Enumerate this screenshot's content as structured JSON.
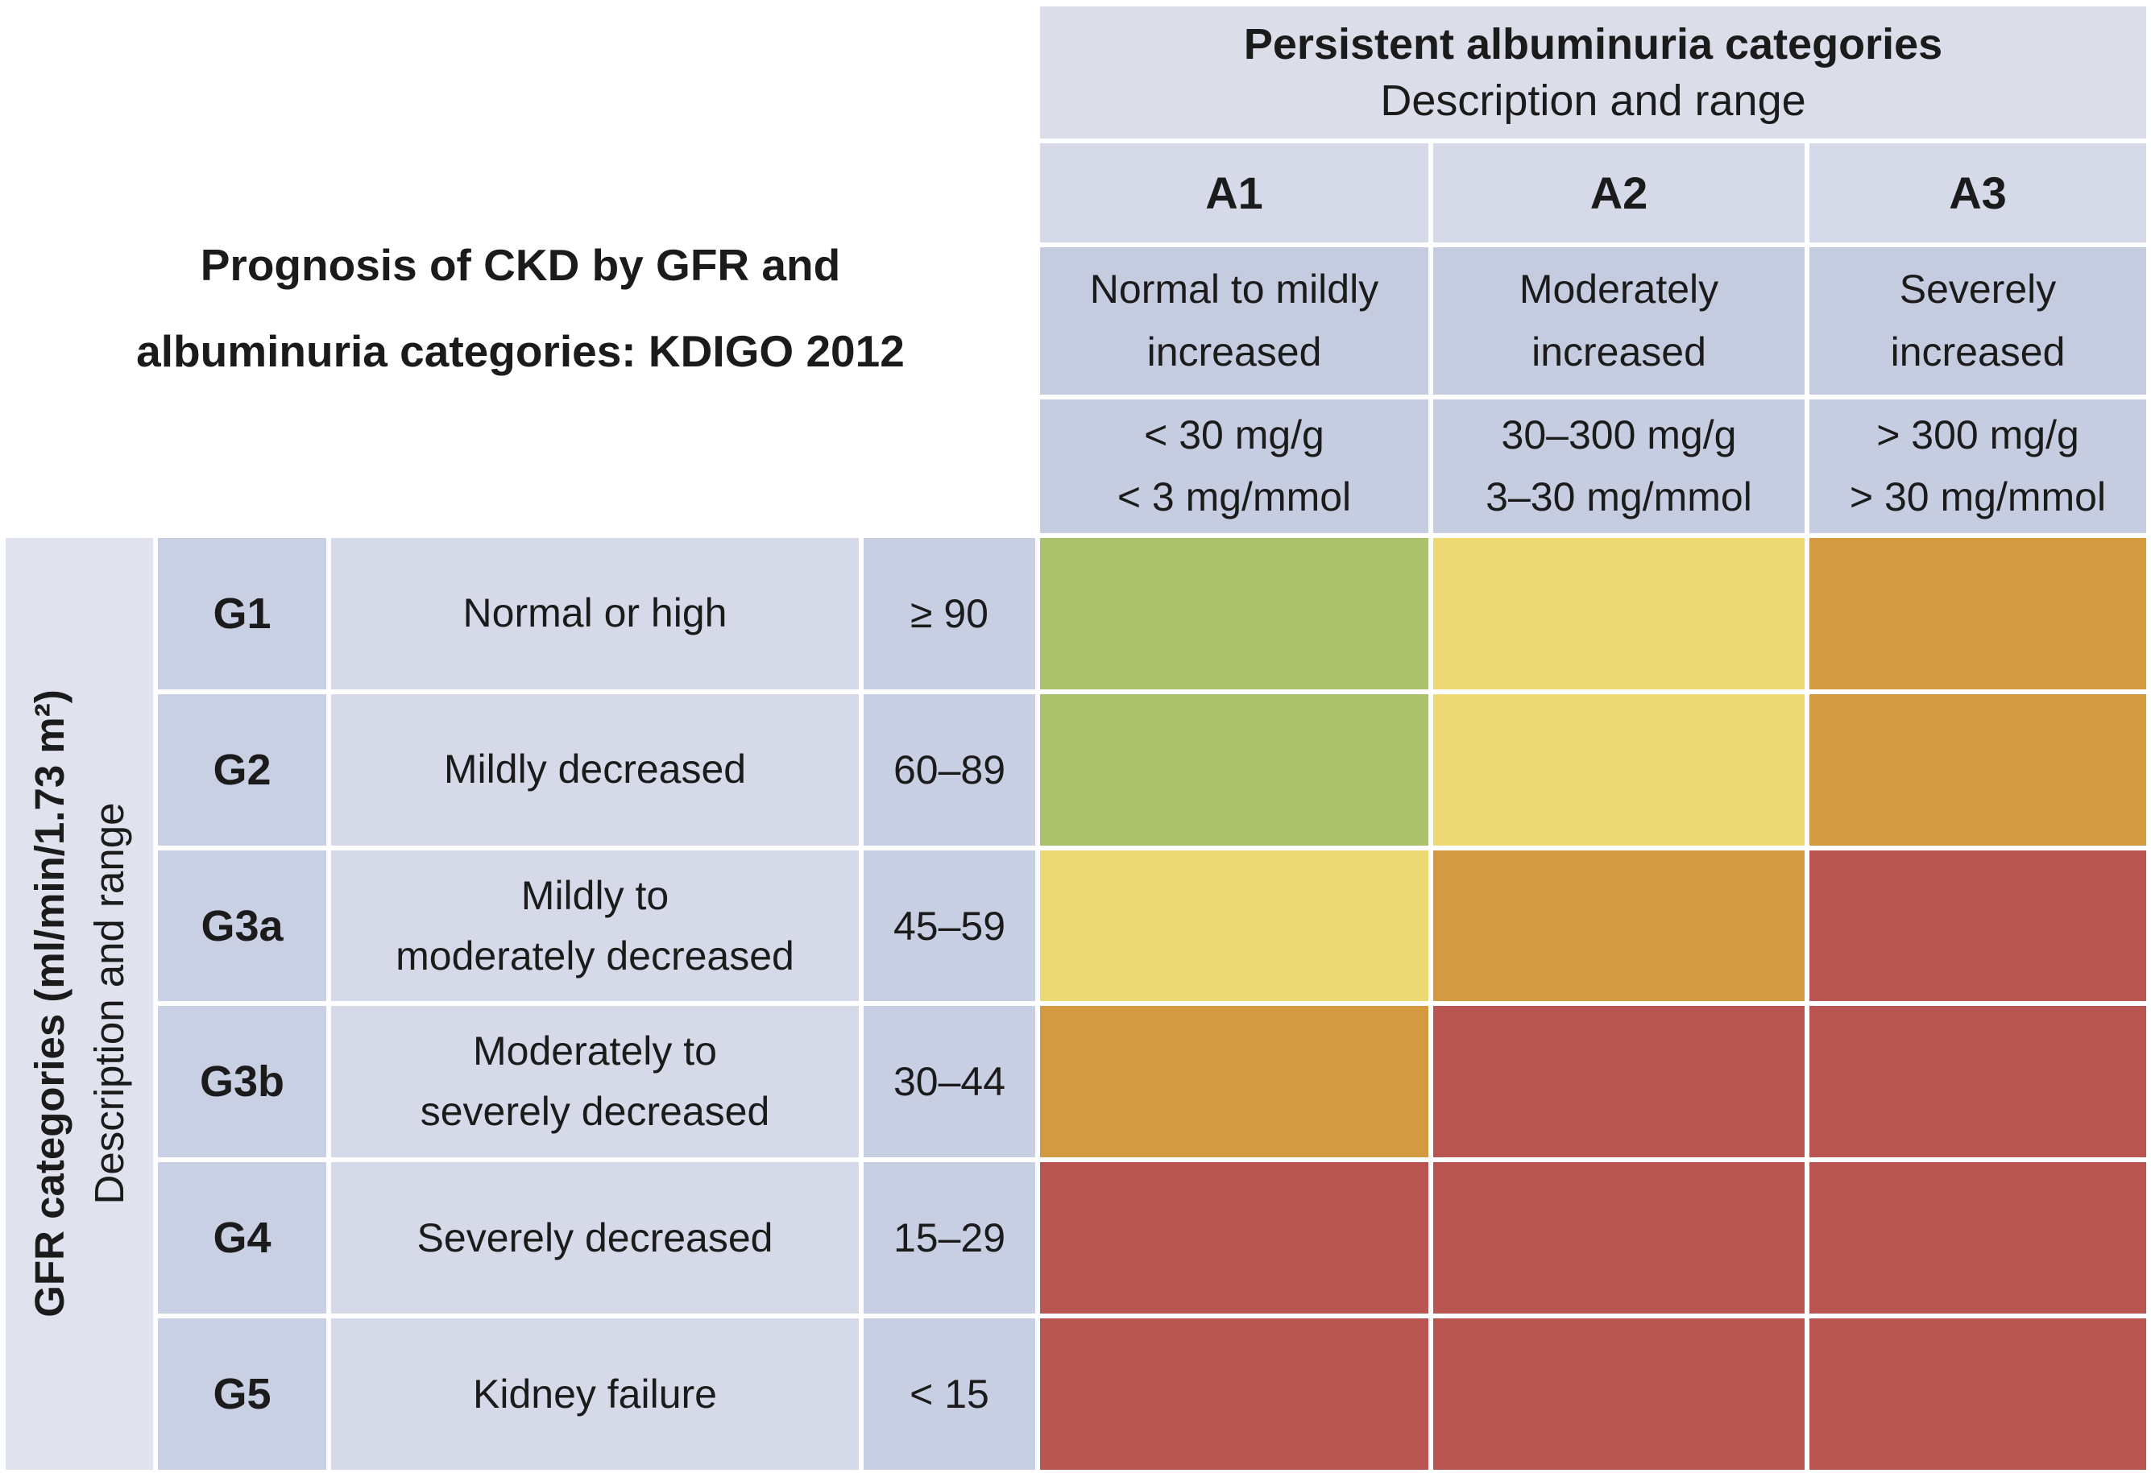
{
  "figure": {
    "title": "Prognosis of CKD by GFR and\nalbuminuria categories: KDIGO 2012"
  },
  "albuminuria_header": {
    "title": "Persistent albuminuria categories",
    "subtitle": "Description and range",
    "columns": [
      {
        "code": "A1",
        "description": "Normal to mildly\nincreased",
        "range_mg_g": "< 30 mg/g",
        "range_mg_mmol": "< 3 mg/mmol"
      },
      {
        "code": "A2",
        "description": "Moderately\nincreased",
        "range_mg_g": "30–300 mg/g",
        "range_mg_mmol": "3–30 mg/mmol"
      },
      {
        "code": "A3",
        "description": "Severely\nincreased",
        "range_mg_g": "> 300 mg/g",
        "range_mg_mmol": "> 30 mg/mmol"
      }
    ]
  },
  "gfr_axis": {
    "title": "GFR categories (ml/min/1.73 m²)",
    "subtitle": "Description and range",
    "rows": [
      {
        "code": "G1",
        "description": "Normal or high",
        "range": "≥ 90"
      },
      {
        "code": "G2",
        "description": "Mildly decreased",
        "range": "60–89"
      },
      {
        "code": "G3a",
        "description": "Mildly to\nmoderately decreased",
        "range": "45–59"
      },
      {
        "code": "G3b",
        "description": "Moderately to\nseverely decreased",
        "range": "30–44"
      },
      {
        "code": "G4",
        "description": "Severely decreased",
        "range": "15–29"
      },
      {
        "code": "G5",
        "description": "Kidney failure",
        "range": "< 15"
      }
    ]
  },
  "risk_colors": {
    "green": "#abc16c",
    "yellow": "#ecd973",
    "orange": "#d49a42",
    "red": "#b95551"
  },
  "risk_matrix": [
    [
      "green",
      "yellow",
      "orange"
    ],
    [
      "green",
      "yellow",
      "orange"
    ],
    [
      "yellow",
      "orange",
      "red"
    ],
    [
      "orange",
      "red",
      "red"
    ],
    [
      "red",
      "red",
      "red"
    ],
    [
      "red",
      "red",
      "red"
    ]
  ],
  "chart_data": {
    "type": "heatmap",
    "title": "Prognosis of CKD by GFR and albuminuria categories: KDIGO 2012",
    "x_axis": {
      "label": "Persistent albuminuria categories",
      "sublabel": "Description and range",
      "categories": [
        "A1",
        "A2",
        "A3"
      ],
      "category_descriptions": [
        "Normal to mildly increased",
        "Moderately increased",
        "Severely increased"
      ],
      "category_ranges": [
        "< 30 mg/g, < 3 mg/mmol",
        "30–300 mg/g, 3–30 mg/mmol",
        "> 300 mg/g, > 30 mg/mmol"
      ]
    },
    "y_axis": {
      "label": "GFR categories (ml/min/1.73 m²)",
      "sublabel": "Description and range",
      "categories": [
        "G1",
        "G2",
        "G3a",
        "G3b",
        "G4",
        "G5"
      ],
      "category_descriptions": [
        "Normal or high",
        "Mildly decreased",
        "Mildly to moderately decreased",
        "Moderately to severely decreased",
        "Severely decreased",
        "Kidney failure"
      ],
      "category_ranges": [
        "≥ 90",
        "60–89",
        "45–59",
        "30–44",
        "15–29",
        "< 15"
      ]
    },
    "cells_color_by_row": [
      [
        "green",
        "yellow",
        "orange"
      ],
      [
        "green",
        "yellow",
        "orange"
      ],
      [
        "yellow",
        "orange",
        "red"
      ],
      [
        "orange",
        "red",
        "red"
      ],
      [
        "red",
        "red",
        "red"
      ],
      [
        "red",
        "red",
        "red"
      ]
    ],
    "color_hex": {
      "green": "#abc16c",
      "yellow": "#ecd973",
      "orange": "#d49a42",
      "red": "#b95551"
    },
    "legend_position": "none",
    "grid": "white separators"
  }
}
